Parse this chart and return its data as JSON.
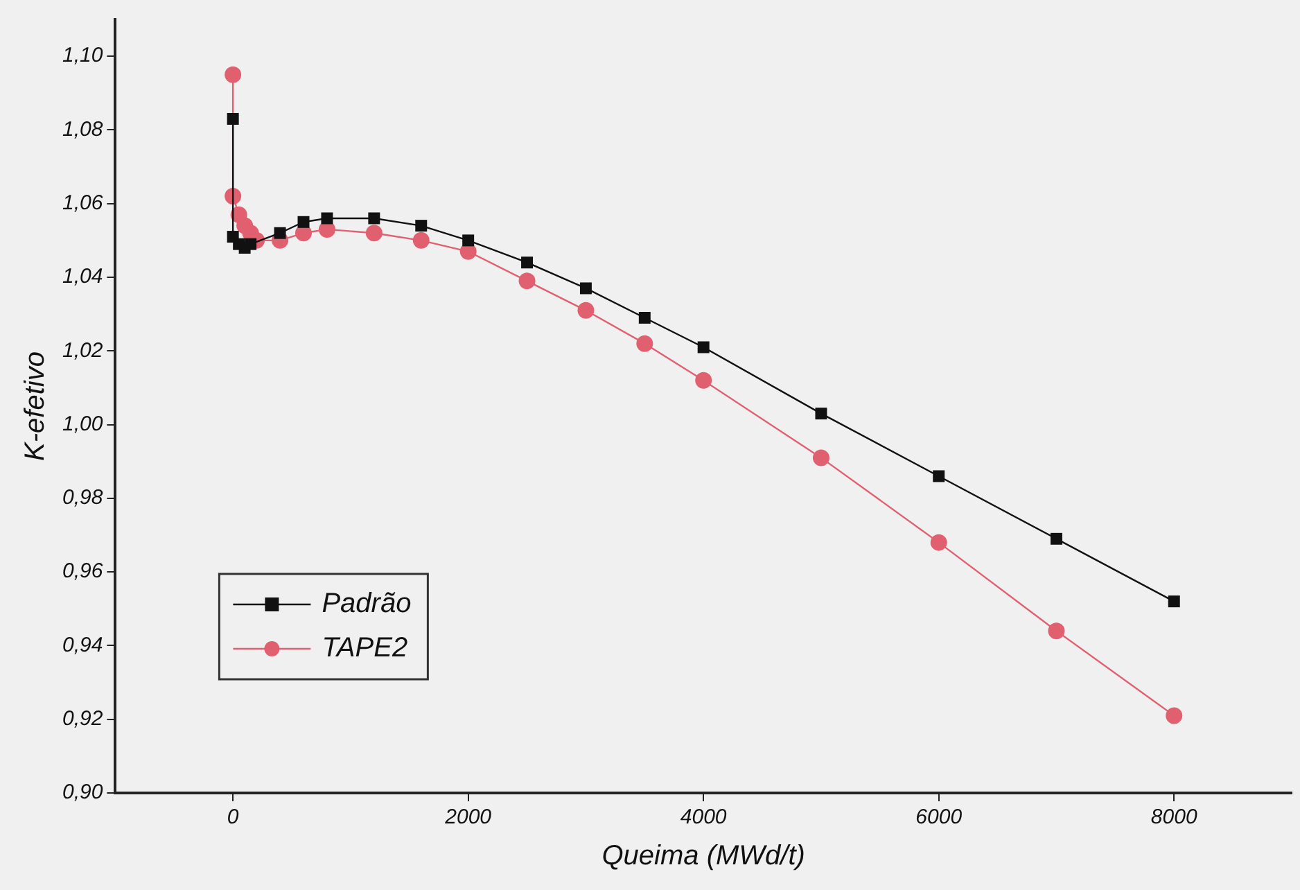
{
  "chart_data": {
    "type": "line",
    "xlabel": "Queima (MWd/t)",
    "ylabel": "K-efetivo",
    "xlim": [
      -1000,
      9000
    ],
    "xticks": [
      0,
      2000,
      4000,
      6000,
      8000
    ],
    "ylim": [
      0.9,
      1.11
    ],
    "yticks": [
      {
        "value": 0.9,
        "label": "0,90"
      },
      {
        "value": 0.92,
        "label": "0,92"
      },
      {
        "value": 0.94,
        "label": "0,94"
      },
      {
        "value": 0.96,
        "label": "0,96"
      },
      {
        "value": 0.98,
        "label": "0,98"
      },
      {
        "value": 1.0,
        "label": "1,00"
      },
      {
        "value": 1.02,
        "label": "1,02"
      },
      {
        "value": 1.04,
        "label": "1,04"
      },
      {
        "value": 1.06,
        "label": "1,06"
      },
      {
        "value": 1.08,
        "label": "1,08"
      },
      {
        "value": 1.1,
        "label": "1,10"
      }
    ],
    "grid": false,
    "legend": "bottom left",
    "line_style": "solid",
    "series": [
      {
        "name": "Padrão",
        "color": "#111111",
        "marker": "square",
        "x": [
          0,
          0,
          50,
          100,
          150,
          400,
          600,
          800,
          1200,
          1600,
          2000,
          2500,
          3000,
          3500,
          4000,
          5000,
          6000,
          7000,
          8000
        ],
        "values": [
          1.083,
          1.051,
          1.049,
          1.048,
          1.049,
          1.052,
          1.055,
          1.056,
          1.056,
          1.054,
          1.05,
          1.044,
          1.037,
          1.029,
          1.021,
          1.003,
          0.986,
          0.969,
          0.952
        ]
      },
      {
        "name": "TAPE2",
        "color": "#e06070",
        "marker": "circle",
        "x": [
          0,
          0,
          50,
          100,
          150,
          200,
          400,
          600,
          800,
          1200,
          1600,
          2000,
          2500,
          3000,
          3500,
          4000,
          5000,
          6000,
          7000,
          8000
        ],
        "values": [
          1.095,
          1.062,
          1.057,
          1.054,
          1.052,
          1.05,
          1.05,
          1.052,
          1.053,
          1.052,
          1.05,
          1.047,
          1.039,
          1.031,
          1.022,
          1.012,
          0.991,
          0.968,
          0.944,
          0.921
        ]
      }
    ]
  }
}
